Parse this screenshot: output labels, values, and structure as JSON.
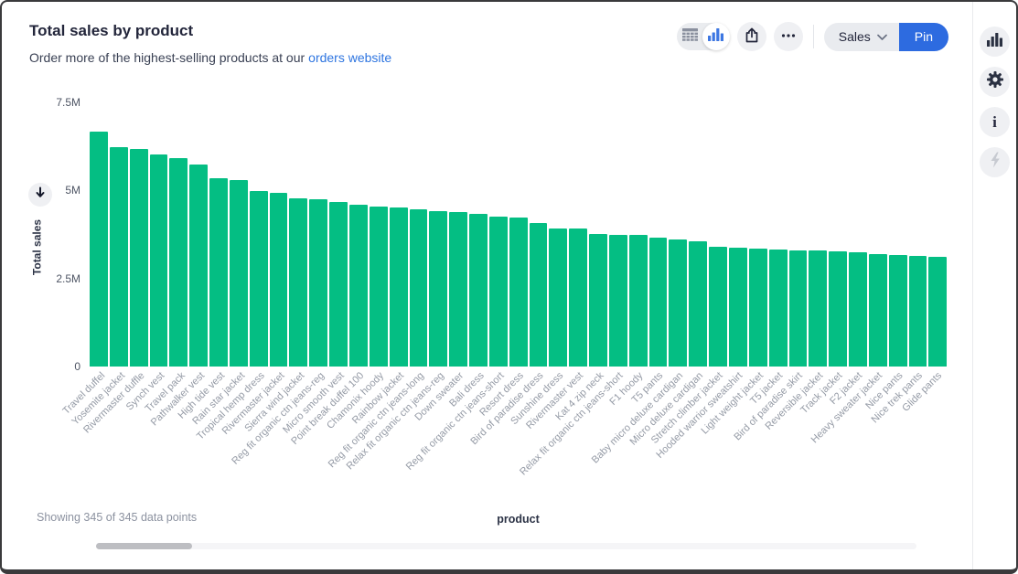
{
  "header": {
    "title": "Total sales by product",
    "subtitle_text": "Order more of the highest-selling products at our",
    "subtitle_link": "orders website"
  },
  "toolbar": {
    "chart_type_toggle": {
      "options": [
        "table",
        "bar-chart"
      ],
      "selected": "bar-chart"
    },
    "collection_label": "Sales",
    "pin_label": "Pin"
  },
  "icons": {
    "toggle_table": "table-icon",
    "toggle_chart": "bar-chart-icon",
    "share": "share-icon",
    "more": "ellipsis-icon",
    "collection_chevron": "chevron-down-icon",
    "sort_direction": "arrow-down-icon",
    "sidebar": [
      "bar-chart-icon",
      "gear-icon",
      "info-icon",
      "lightning-icon"
    ]
  },
  "right_sidebar": {
    "items": [
      {
        "name": "visualization",
        "enabled": true
      },
      {
        "name": "settings",
        "enabled": true
      },
      {
        "name": "info",
        "enabled": true
      },
      {
        "name": "actions",
        "enabled": false
      }
    ]
  },
  "footer": {
    "status": "Showing 345 of 345 data points"
  },
  "colors": {
    "bar_green": "#04be83",
    "accent_blue": "#2d6be0",
    "link_blue": "#2e75e0",
    "window_border": "#3a3a3c"
  },
  "chart_data": {
    "type": "bar",
    "title": "Total sales by product",
    "xlabel": "product",
    "ylabel": "Total sales",
    "ylim": [
      0,
      7.5
    ],
    "value_unit": "M",
    "grid": false,
    "legend": false,
    "sort": "descending",
    "bar_color": "#04be83",
    "yticks": [
      {
        "label": "7.5M",
        "value": 7.5
      },
      {
        "label": "5M",
        "value": 5
      },
      {
        "label": "2.5M",
        "value": 2.5
      },
      {
        "label": "0",
        "value": 0
      }
    ],
    "categories": [
      "Travel duffel",
      "Yosemite jacket",
      "Rivermaster duffle",
      "Synch vest",
      "Travel pack",
      "Pathwalker vest",
      "High tide vest",
      "Rain star jacket",
      "Tropical hemp dress",
      "Rivermaster jacket",
      "Sierra wind jacket",
      "Reg fit organic ctn jeans-reg",
      "Micro smooth vest",
      "Point break duffel 100",
      "Chamonix hoody",
      "Rainbow jacket",
      "Reg fit organic ctn jeans-long",
      "Relax fit organic ctn jeans-reg",
      "Down sweater",
      "Bali dress",
      "Reg fit organic ctn jeans-short",
      "Resort dress",
      "Bird of paradise dress",
      "Sunshine dress",
      "Rivermaster vest",
      "Kat 4 zip neck",
      "Relax fit organic ctn jeans-short",
      "F1 hoody",
      "T5 pants",
      "Baby micro deluxe cardigan",
      "Micro deluxe cardigan",
      "Stretch climber jacket",
      "Hooded warrior sweatshirt",
      "Light weight jacket",
      "T5 jacket",
      "Bird of paradise skirt",
      "Reversible jacket",
      "Track jacket",
      "F2 jacket",
      "Heavy sweater jacket",
      "Nice pants",
      "Nice trek pants",
      "Glide pants"
    ],
    "values": [
      6.65,
      6.22,
      6.17,
      6.0,
      5.9,
      5.72,
      5.35,
      5.28,
      4.97,
      4.92,
      4.77,
      4.74,
      4.66,
      4.58,
      4.53,
      4.5,
      4.45,
      4.4,
      4.37,
      4.32,
      4.24,
      4.22,
      4.06,
      3.91,
      3.9,
      3.75,
      3.74,
      3.72,
      3.65,
      3.59,
      3.54,
      3.39,
      3.37,
      3.33,
      3.31,
      3.3,
      3.28,
      3.27,
      3.23,
      3.2,
      3.15,
      3.14,
      3.12
    ]
  }
}
